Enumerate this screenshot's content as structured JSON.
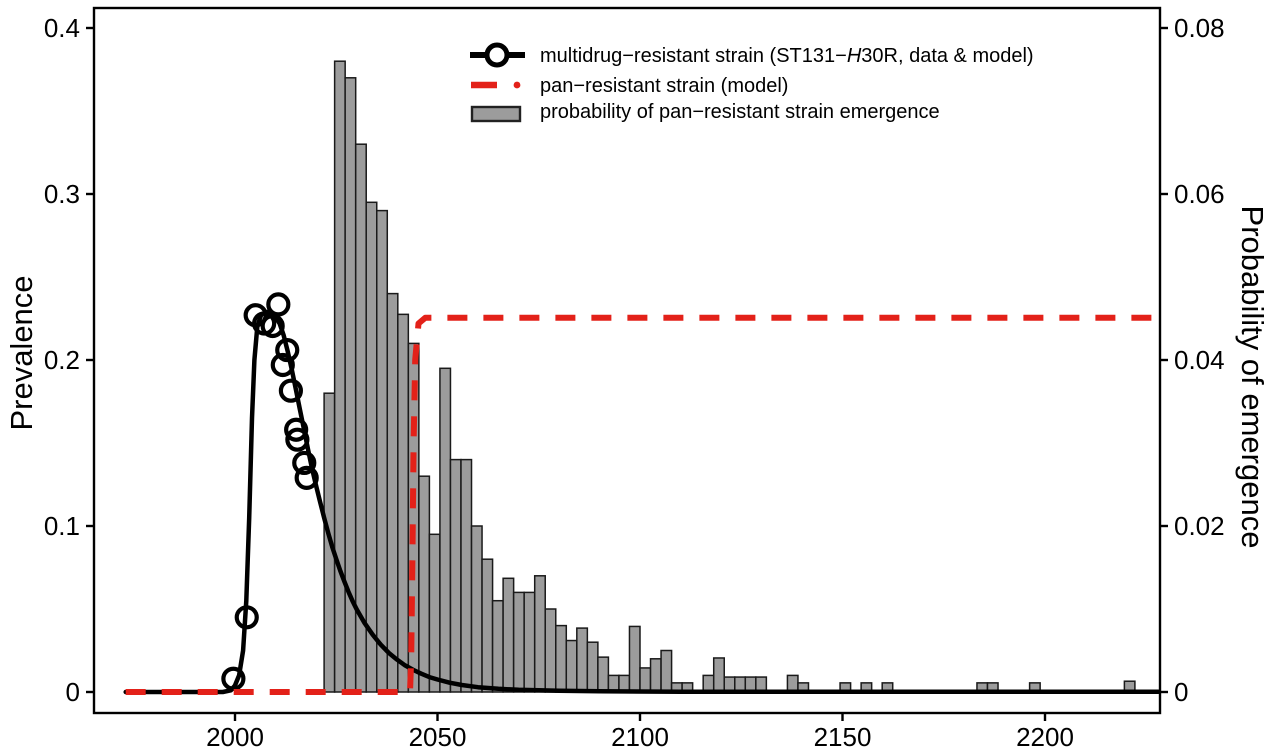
{
  "figure": {
    "left_axis_title": "Prevalence",
    "right_axis_title": "Probability of emergence"
  },
  "legend": {
    "mdr": {
      "pre": "multidrug−resistant strain (ST131−",
      "italic": "H",
      "post": "30R, data & model)"
    },
    "pan": {
      "label": "pan−resistant strain (model)"
    },
    "bars": {
      "label": "probability of pan−resistant strain emergence"
    }
  },
  "chart_data": {
    "type": "composite",
    "title": "",
    "grid": false,
    "legend_position": "top-center-inside",
    "x_axis": {
      "range": [
        1965,
        2228
      ],
      "tick_values": [
        2000,
        2050,
        2100,
        2150,
        2200
      ],
      "tick_labels": [
        "2000",
        "2050",
        "2100",
        "2150",
        "2200"
      ]
    },
    "left_axis": {
      "label": "Prevalence",
      "range": [
        0,
        0.4
      ],
      "tick_values": [
        0,
        0.1,
        0.2,
        0.3,
        0.4
      ],
      "tick_labels": [
        "0",
        "0.1",
        "0.2",
        "0.3",
        "0.4"
      ]
    },
    "right_axis": {
      "label": "Probability of emergence",
      "range": [
        0,
        0.08
      ],
      "tick_values": [
        0,
        0.02,
        0.04,
        0.06,
        0.08
      ],
      "tick_labels": [
        "0",
        "0.02",
        "0.04",
        "0.06",
        "0.08"
      ]
    },
    "colors": {
      "mdr_line": "#000000",
      "pan_line": "#e32119",
      "bar_fill": "#9c9c9c",
      "bar_stroke": "#1a1a1a"
    },
    "series": [
      {
        "name": "multidrug-resistant strain (ST131-H30R, data & model)",
        "type": "line+scatter",
        "axis": "left",
        "marker": "open-circle",
        "model_points": [
          [
            1973,
            0
          ],
          [
            1997,
            0
          ],
          [
            1999,
            0.001
          ],
          [
            2000,
            0.004
          ],
          [
            2001,
            0.01
          ],
          [
            2002,
            0.025
          ],
          [
            2002.8,
            0.055
          ],
          [
            2003.5,
            0.105
          ],
          [
            2004.2,
            0.165
          ],
          [
            2004.8,
            0.2
          ],
          [
            2005.5,
            0.22
          ],
          [
            2006.5,
            0.2275
          ],
          [
            2008,
            0.229
          ],
          [
            2009.5,
            0.2275
          ],
          [
            2011,
            0.222
          ],
          [
            2012,
            0.215
          ],
          [
            2013,
            0.2055
          ],
          [
            2014,
            0.1945
          ],
          [
            2015,
            0.1825
          ],
          [
            2016,
            0.1705
          ],
          [
            2017,
            0.1585
          ],
          [
            2018,
            0.1465
          ],
          [
            2019,
            0.135
          ],
          [
            2020,
            0.1245
          ],
          [
            2021,
            0.1145
          ],
          [
            2022,
            0.105
          ],
          [
            2023,
            0.096
          ],
          [
            2024,
            0.0875
          ],
          [
            2025,
            0.08
          ],
          [
            2026,
            0.073
          ],
          [
            2027,
            0.0665
          ],
          [
            2028,
            0.0605
          ],
          [
            2029,
            0.055
          ],
          [
            2030,
            0.05
          ],
          [
            2032,
            0.0415
          ],
          [
            2034,
            0.0345
          ],
          [
            2036,
            0.0285
          ],
          [
            2038,
            0.0235
          ],
          [
            2040,
            0.0195
          ],
          [
            2042,
            0.016
          ],
          [
            2044,
            0.0133
          ],
          [
            2046,
            0.011
          ],
          [
            2048,
            0.009
          ],
          [
            2050,
            0.0075
          ],
          [
            2053,
            0.0056
          ],
          [
            2056,
            0.0042
          ],
          [
            2060,
            0.0029
          ],
          [
            2065,
            0.0019
          ],
          [
            2070,
            0.0013
          ],
          [
            2080,
            0.0007
          ],
          [
            2090,
            0.0004
          ],
          [
            2110,
            0.0002
          ],
          [
            2150,
            0.0001
          ],
          [
            2228,
            0.0001
          ]
        ],
        "data_points": [
          [
            1999.6,
            0.008
          ],
          [
            2002.9,
            0.045
          ],
          [
            2005.1,
            0.227
          ],
          [
            2007.2,
            0.222
          ],
          [
            2009.3,
            0.2205
          ],
          [
            2010.7,
            0.2335
          ],
          [
            2011.8,
            0.197
          ],
          [
            2012.9,
            0.206
          ],
          [
            2013.8,
            0.1815
          ],
          [
            2015.1,
            0.158
          ],
          [
            2015.4,
            0.152
          ],
          [
            2017.1,
            0.138
          ],
          [
            2017.7,
            0.129
          ]
        ]
      },
      {
        "name": "pan-resistant strain (model)",
        "type": "line",
        "style": "dashed",
        "axis": "left",
        "points": [
          [
            1973,
            0
          ],
          [
            2043.2,
            0
          ],
          [
            2043.5,
            0.02
          ],
          [
            2043.8,
            0.08
          ],
          [
            2044.1,
            0.15
          ],
          [
            2044.5,
            0.2
          ],
          [
            2045.3,
            0.222
          ],
          [
            2047,
            0.2255
          ],
          [
            2228,
            0.2255
          ]
        ]
      },
      {
        "name": "probability of pan-resistant strain emergence",
        "type": "bar",
        "axis": "right",
        "bin_width_years": 2.6,
        "bars": [
          [
            2022.0,
            0.036
          ],
          [
            2024.6,
            0.076
          ],
          [
            2027.2,
            0.074
          ],
          [
            2029.8,
            0.066
          ],
          [
            2032.4,
            0.059
          ],
          [
            2035.0,
            0.058
          ],
          [
            2037.6,
            0.048
          ],
          [
            2040.2,
            0.0455
          ],
          [
            2042.8,
            0.042
          ],
          [
            2045.4,
            0.026
          ],
          [
            2048.0,
            0.019
          ],
          [
            2050.6,
            0.039
          ],
          [
            2053.2,
            0.028
          ],
          [
            2055.8,
            0.028
          ],
          [
            2058.4,
            0.02
          ],
          [
            2061.0,
            0.016
          ],
          [
            2063.6,
            0.011
          ],
          [
            2066.2,
            0.0137
          ],
          [
            2068.8,
            0.012
          ],
          [
            2071.4,
            0.012
          ],
          [
            2074.0,
            0.014
          ],
          [
            2076.6,
            0.01
          ],
          [
            2079.2,
            0.008
          ],
          [
            2081.8,
            0.0062
          ],
          [
            2084.4,
            0.0077
          ],
          [
            2087.0,
            0.006
          ],
          [
            2089.6,
            0.0042
          ],
          [
            2092.2,
            0.002
          ],
          [
            2094.8,
            0.002
          ],
          [
            2097.4,
            0.0079
          ],
          [
            2100.0,
            0.0029
          ],
          [
            2102.6,
            0.004
          ],
          [
            2105.2,
            0.005
          ],
          [
            2107.8,
            0.0011
          ],
          [
            2110.4,
            0.0011
          ],
          [
            2115.6,
            0.002
          ],
          [
            2118.2,
            0.0041
          ],
          [
            2120.8,
            0.0018
          ],
          [
            2123.4,
            0.0018
          ],
          [
            2126.0,
            0.0018
          ],
          [
            2128.6,
            0.0018
          ],
          [
            2136.4,
            0.002
          ],
          [
            2139.0,
            0.0011
          ],
          [
            2149.4,
            0.0011
          ],
          [
            2154.6,
            0.0011
          ],
          [
            2159.8,
            0.0011
          ],
          [
            2183.2,
            0.0011
          ],
          [
            2185.8,
            0.0011
          ],
          [
            2196.2,
            0.0011
          ],
          [
            2219.6,
            0.0013
          ]
        ]
      }
    ]
  }
}
